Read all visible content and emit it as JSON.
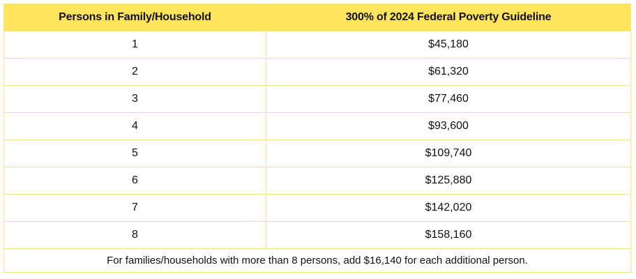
{
  "table": {
    "headers": [
      "Persons in Family/Household",
      "300% of 2024 Federal Poverty Guideline"
    ],
    "rows": [
      {
        "persons": "1",
        "amount": "$45,180"
      },
      {
        "persons": "2",
        "amount": "$61,320"
      },
      {
        "persons": "3",
        "amount": "$77,460"
      },
      {
        "persons": "4",
        "amount": "$93,600"
      },
      {
        "persons": "5",
        "amount": "$109,740"
      },
      {
        "persons": "6",
        "amount": "$125,880"
      },
      {
        "persons": "7",
        "amount": "$142,020"
      },
      {
        "persons": "8",
        "amount": "$158,160"
      }
    ],
    "footnote": "For families/households with more than 8 persons, add $16,140 for each additional person."
  },
  "colors": {
    "header_background": "#ffe45c",
    "border": "#fbe38a",
    "text": "#111111"
  }
}
